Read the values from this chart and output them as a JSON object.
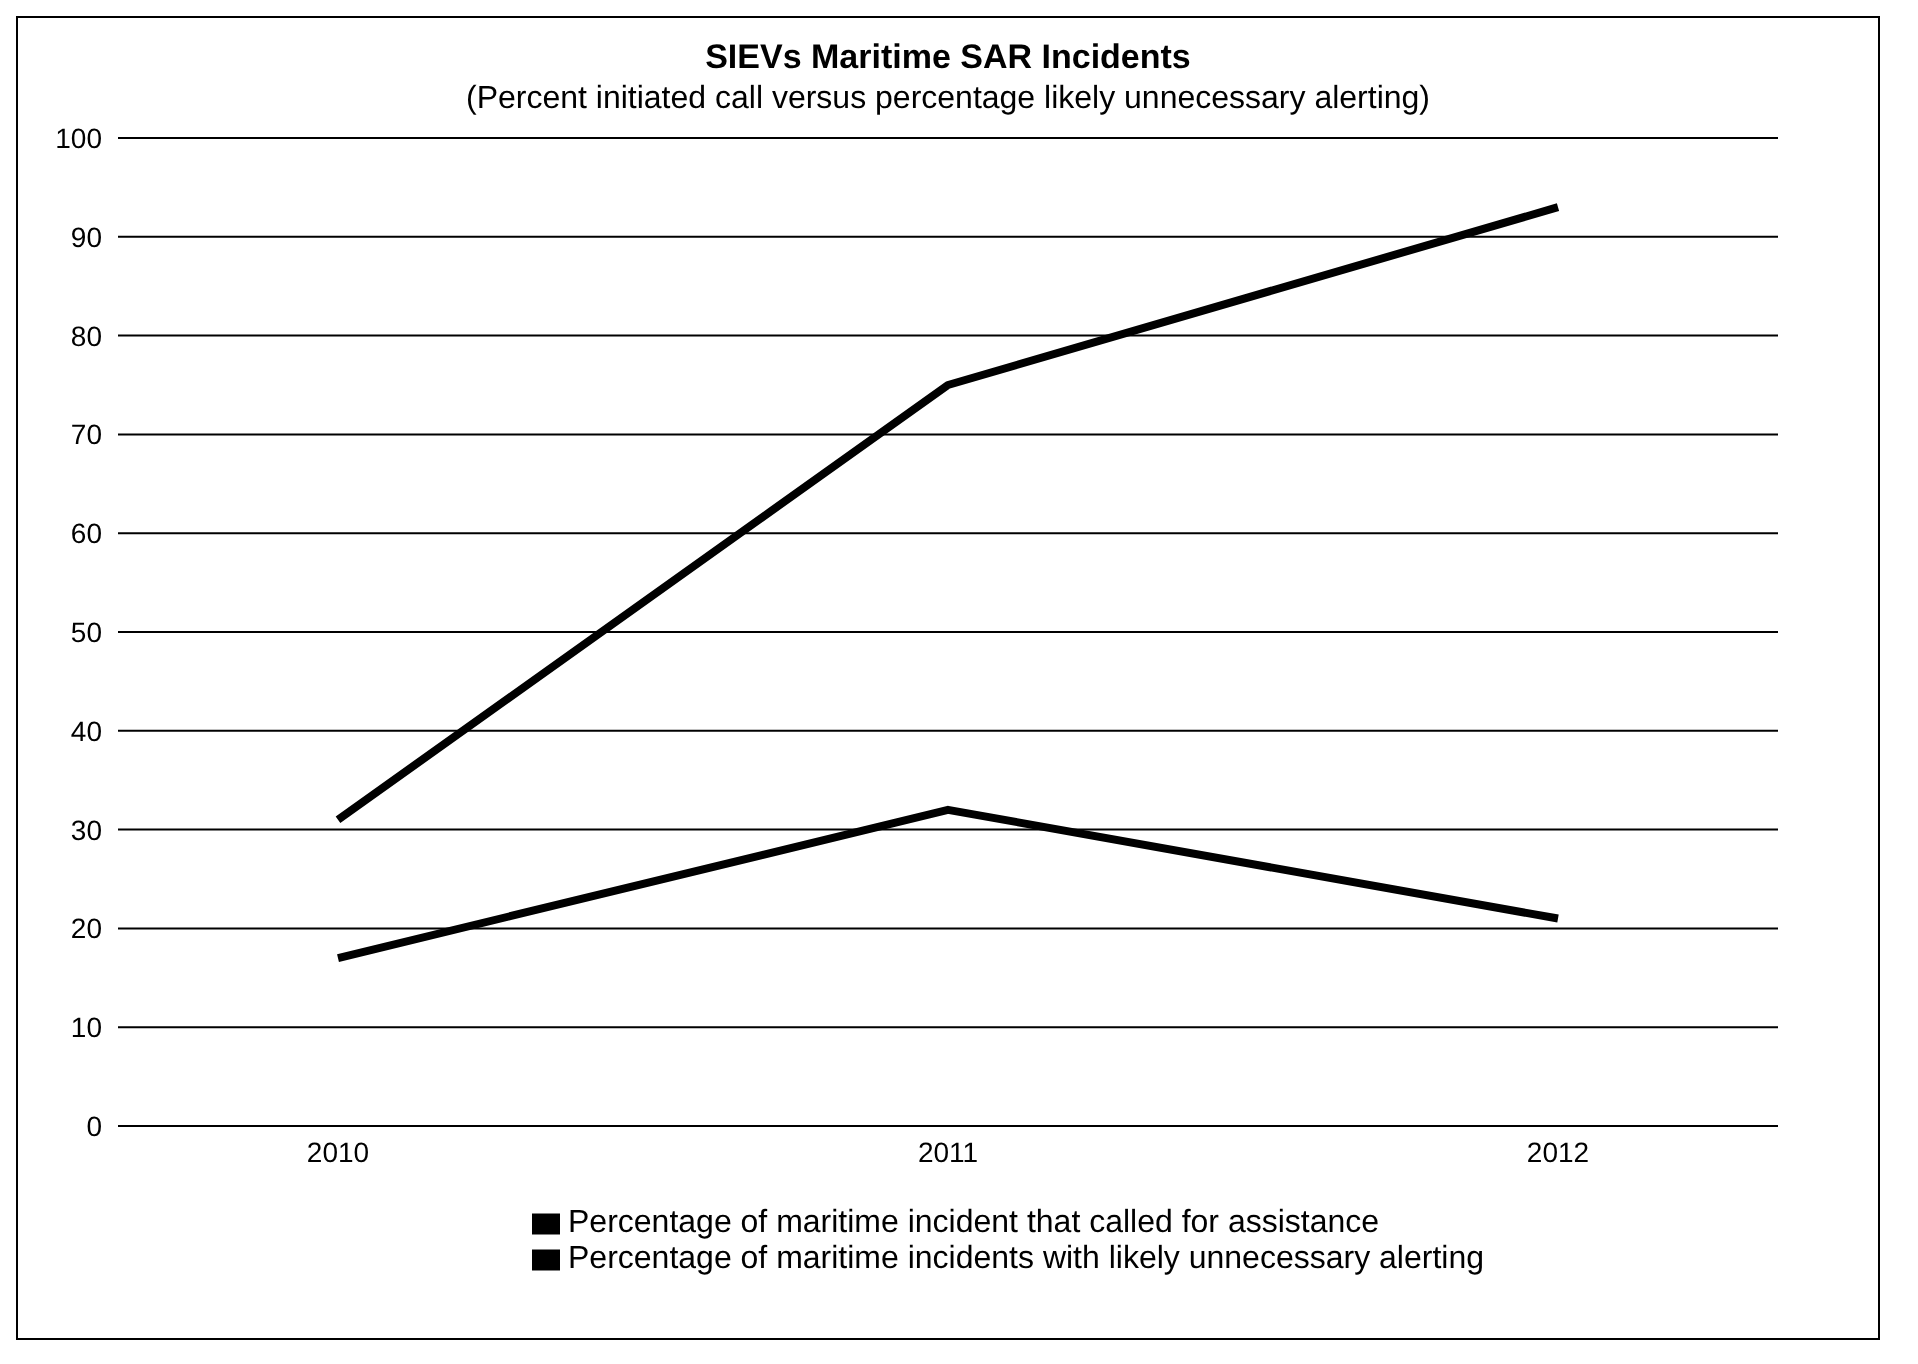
{
  "chart_data": {
    "type": "line",
    "title": "SIEVs Maritime SAR Incidents",
    "subtitle": "(Percent initiated call versus percentage likely unnecessary alerting)",
    "categories": [
      "2010",
      "2011",
      "2012"
    ],
    "series": [
      {
        "name": "Percentage of maritime incident that called for assistance",
        "color": "#000000",
        "values": [
          31,
          75,
          93
        ]
      },
      {
        "name": "Percentage of maritime incidents with likely unnecessary alerting",
        "color": "#000000",
        "values": [
          17,
          32,
          21
        ]
      }
    ],
    "ylim": [
      0,
      100
    ],
    "yticks": [
      0,
      10,
      20,
      30,
      40,
      50,
      60,
      70,
      80,
      90,
      100
    ],
    "grid": "y",
    "legend": "bottom",
    "marker": "none",
    "line_style": "solid"
  }
}
